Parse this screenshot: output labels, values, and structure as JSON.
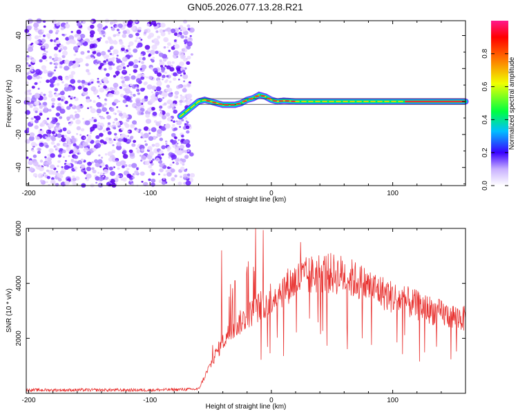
{
  "title": "GN05.2026.077.13.28.R21",
  "chart_data": [
    {
      "type": "heatmap",
      "panel": "top",
      "xlabel": "Height of straight line (km)",
      "ylabel": "Frequency (Hz)",
      "xlim": [
        -202,
        160
      ],
      "ylim": [
        -51,
        49
      ],
      "xticks": [
        -200,
        -100,
        0,
        100
      ],
      "yticks": [
        -40,
        -20,
        0,
        20,
        40
      ],
      "noise_region_x": [
        -202,
        -65
      ],
      "ridge": {
        "x": [
          -75,
          -70,
          -65,
          -60,
          -55,
          -50,
          -45,
          -40,
          -35,
          -30,
          -25,
          -20,
          -15,
          -10,
          -5,
          0,
          5,
          10,
          20,
          40,
          60,
          80,
          100,
          120,
          140,
          160
        ],
        "y": [
          -9,
          -6,
          -3,
          0,
          1,
          0,
          -1,
          -2,
          -2,
          -2,
          -1,
          1,
          2,
          4,
          3,
          1,
          0,
          0.5,
          0,
          0,
          0,
          0,
          0,
          0,
          0,
          0
        ]
      },
      "colorbar": {
        "label": "Normalized spectral amplitude",
        "range": [
          0,
          1
        ],
        "ticks": [
          "0.0",
          "0.2",
          "0.4",
          "0.6",
          "0.8"
        ]
      }
    },
    {
      "type": "line",
      "panel": "bottom",
      "xlabel": "Height of straight line (km)",
      "ylabel": "SNR (10 * v/v)",
      "xlim": [
        -202,
        160
      ],
      "ylim": [
        0,
        6000
      ],
      "xticks": [
        -200,
        -100,
        0,
        100
      ],
      "yticks": [
        2000,
        4000,
        6000
      ],
      "color": "#e8312f",
      "envelope": {
        "x": [
          -202,
          -100,
          -60,
          -55,
          -45,
          -35,
          -20,
          0,
          20,
          40,
          60,
          80,
          100,
          120,
          140,
          160
        ],
        "y": [
          120,
          120,
          150,
          600,
          1500,
          2200,
          2800,
          3500,
          4100,
          4400,
          4300,
          3900,
          3500,
          3200,
          2900,
          2700
        ]
      },
      "spikes": [
        {
          "x": -41,
          "y": 5200
        },
        {
          "x": -30,
          "y": 4100
        },
        {
          "x": -13,
          "y": 6000
        },
        {
          "x": 24,
          "y": 5500
        }
      ]
    }
  ]
}
